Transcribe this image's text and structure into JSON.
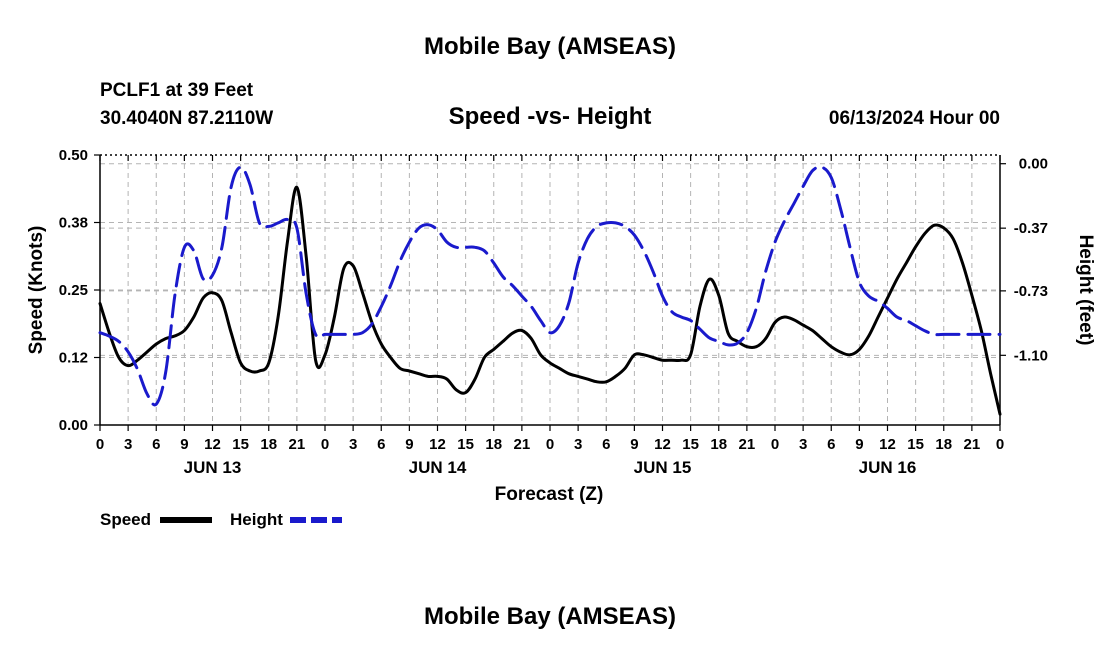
{
  "header": {
    "title": "Mobile Bay (AMSEAS)",
    "station": "PCLF1 at 39 Feet",
    "coords": "30.4040N  87.2110W",
    "subtitle": "Speed -vs- Height",
    "date": "06/13/2024 Hour 00"
  },
  "footer": {
    "title": "Mobile Bay (AMSEAS)"
  },
  "colors": {
    "speed": "#000000",
    "height": "#1a1acc",
    "grid": "#b4b4b4"
  },
  "chart_data": {
    "type": "line",
    "title": "Speed -vs- Height",
    "xlabel": "Forecast (Z)",
    "ylabel": "Speed (Knots)",
    "y2label": "Height (feet)",
    "xlim": [
      0,
      96
    ],
    "ylim": [
      0,
      0.5
    ],
    "y2lim": [
      -1.5,
      0.05
    ],
    "xticks": [
      0,
      3,
      6,
      9,
      12,
      15,
      18,
      21,
      24,
      27,
      30,
      33,
      36,
      39,
      42,
      45,
      48,
      51,
      54,
      57,
      60,
      63,
      66,
      69,
      72,
      75,
      78,
      81,
      84,
      87,
      90,
      93,
      96
    ],
    "xtick_labels": [
      "0",
      "3",
      "6",
      "9",
      "12",
      "15",
      "18",
      "21",
      "0",
      "3",
      "6",
      "9",
      "12",
      "15",
      "18",
      "21",
      "0",
      "3",
      "6",
      "9",
      "12",
      "15",
      "18",
      "21",
      "0",
      "3",
      "6",
      "9",
      "12",
      "15",
      "18",
      "21",
      "0"
    ],
    "day_labels": [
      {
        "x": 12,
        "label": "JUN 13"
      },
      {
        "x": 36,
        "label": "JUN 14"
      },
      {
        "x": 60,
        "label": "JUN 15"
      },
      {
        "x": 84,
        "label": "JUN 16"
      }
    ],
    "yticks": [
      0.0,
      0.125,
      0.25,
      0.375,
      0.5
    ],
    "ytick_labels": [
      "0.00",
      "0.12",
      "0.25",
      "0.38",
      "0.50"
    ],
    "y2ticks": [
      0.0,
      -0.37,
      -0.73,
      -1.1
    ],
    "y2tick_labels": [
      "0.00",
      "-0.37",
      "-0.73",
      "-1.10"
    ],
    "grid": true,
    "legend": [
      {
        "name": "Speed",
        "style": "solid"
      },
      {
        "name": "Height",
        "style": "dashed"
      }
    ],
    "series": [
      {
        "name": "Speed",
        "axis": "left",
        "style": "solid",
        "x": [
          0,
          1,
          2,
          3,
          4,
          5,
          6,
          7,
          8,
          9,
          10,
          11,
          12,
          13,
          14,
          15,
          16,
          17,
          18,
          19,
          20,
          21,
          22,
          23,
          24,
          25,
          26,
          27,
          28,
          29,
          30,
          31,
          32,
          33,
          34,
          35,
          36,
          37,
          38,
          39,
          40,
          41,
          42,
          43,
          44,
          45,
          46,
          47,
          48,
          49,
          50,
          51,
          52,
          53,
          54,
          55,
          56,
          57,
          58,
          59,
          60,
          61,
          62,
          63,
          64,
          65,
          66,
          67,
          68,
          69,
          70,
          71,
          72,
          73,
          74,
          75,
          76,
          77,
          78,
          79,
          80,
          81,
          82,
          83,
          84,
          85,
          86,
          87,
          88,
          89,
          90,
          91,
          92,
          93,
          94,
          95,
          96
        ],
        "values": [
          0.225,
          0.17,
          0.125,
          0.11,
          0.12,
          0.135,
          0.15,
          0.16,
          0.165,
          0.175,
          0.2,
          0.235,
          0.245,
          0.23,
          0.17,
          0.115,
          0.1,
          0.1,
          0.115,
          0.2,
          0.34,
          0.44,
          0.31,
          0.12,
          0.13,
          0.2,
          0.29,
          0.295,
          0.245,
          0.19,
          0.15,
          0.125,
          0.105,
          0.1,
          0.095,
          0.09,
          0.09,
          0.085,
          0.065,
          0.06,
          0.085,
          0.125,
          0.14,
          0.155,
          0.17,
          0.175,
          0.16,
          0.13,
          0.115,
          0.105,
          0.095,
          0.09,
          0.085,
          0.08,
          0.08,
          0.09,
          0.105,
          0.13,
          0.13,
          0.125,
          0.12,
          0.12,
          0.12,
          0.13,
          0.22,
          0.27,
          0.24,
          0.17,
          0.155,
          0.145,
          0.145,
          0.16,
          0.19,
          0.2,
          0.195,
          0.185,
          0.175,
          0.16,
          0.145,
          0.135,
          0.13,
          0.14,
          0.165,
          0.2,
          0.235,
          0.27,
          0.3,
          0.33,
          0.355,
          0.37,
          0.365,
          0.345,
          0.3,
          0.24,
          0.175,
          0.095,
          0.02
        ]
      },
      {
        "name": "Height",
        "axis": "right",
        "style": "dashed",
        "x": [
          0,
          1,
          2,
          3,
          4,
          5,
          6,
          7,
          8,
          9,
          10,
          11,
          12,
          13,
          14,
          15,
          16,
          17,
          18,
          19,
          20,
          21,
          22,
          23,
          24,
          25,
          26,
          27,
          28,
          29,
          30,
          31,
          32,
          33,
          34,
          35,
          36,
          37,
          38,
          39,
          40,
          41,
          42,
          43,
          44,
          45,
          46,
          47,
          48,
          49,
          50,
          51,
          52,
          53,
          54,
          55,
          56,
          57,
          58,
          59,
          60,
          61,
          62,
          63,
          64,
          65,
          66,
          67,
          68,
          69,
          70,
          71,
          72,
          73,
          74,
          75,
          76,
          77,
          78,
          79,
          80,
          81,
          82,
          83,
          84,
          85,
          86,
          87,
          88,
          89,
          90,
          91,
          92,
          93,
          94,
          95,
          96
        ],
        "values": [
          -0.97,
          -0.99,
          -1.02,
          -1.08,
          -1.18,
          -1.32,
          -1.38,
          -1.2,
          -0.75,
          -0.48,
          -0.5,
          -0.66,
          -0.64,
          -0.48,
          -0.13,
          -0.02,
          -0.12,
          -0.34,
          -0.36,
          -0.34,
          -0.32,
          -0.37,
          -0.75,
          -0.98,
          -0.98,
          -0.98,
          -0.98,
          -0.98,
          -0.97,
          -0.92,
          -0.82,
          -0.7,
          -0.56,
          -0.45,
          -0.37,
          -0.35,
          -0.38,
          -0.45,
          -0.48,
          -0.48,
          -0.48,
          -0.5,
          -0.57,
          -0.65,
          -0.7,
          -0.76,
          -0.82,
          -0.9,
          -0.97,
          -0.93,
          -0.8,
          -0.57,
          -0.43,
          -0.36,
          -0.34,
          -0.34,
          -0.36,
          -0.41,
          -0.5,
          -0.62,
          -0.76,
          -0.85,
          -0.88,
          -0.9,
          -0.95,
          -1.0,
          -1.02,
          -1.04,
          -1.03,
          -0.97,
          -0.83,
          -0.62,
          -0.45,
          -0.33,
          -0.23,
          -0.13,
          -0.04,
          -0.02,
          -0.08,
          -0.26,
          -0.48,
          -0.68,
          -0.76,
          -0.79,
          -0.83,
          -0.88,
          -0.9,
          -0.93,
          -0.96,
          -0.98,
          -0.98,
          -0.98,
          -0.98,
          -0.98,
          -0.98,
          -0.98,
          -0.98
        ]
      }
    ]
  }
}
